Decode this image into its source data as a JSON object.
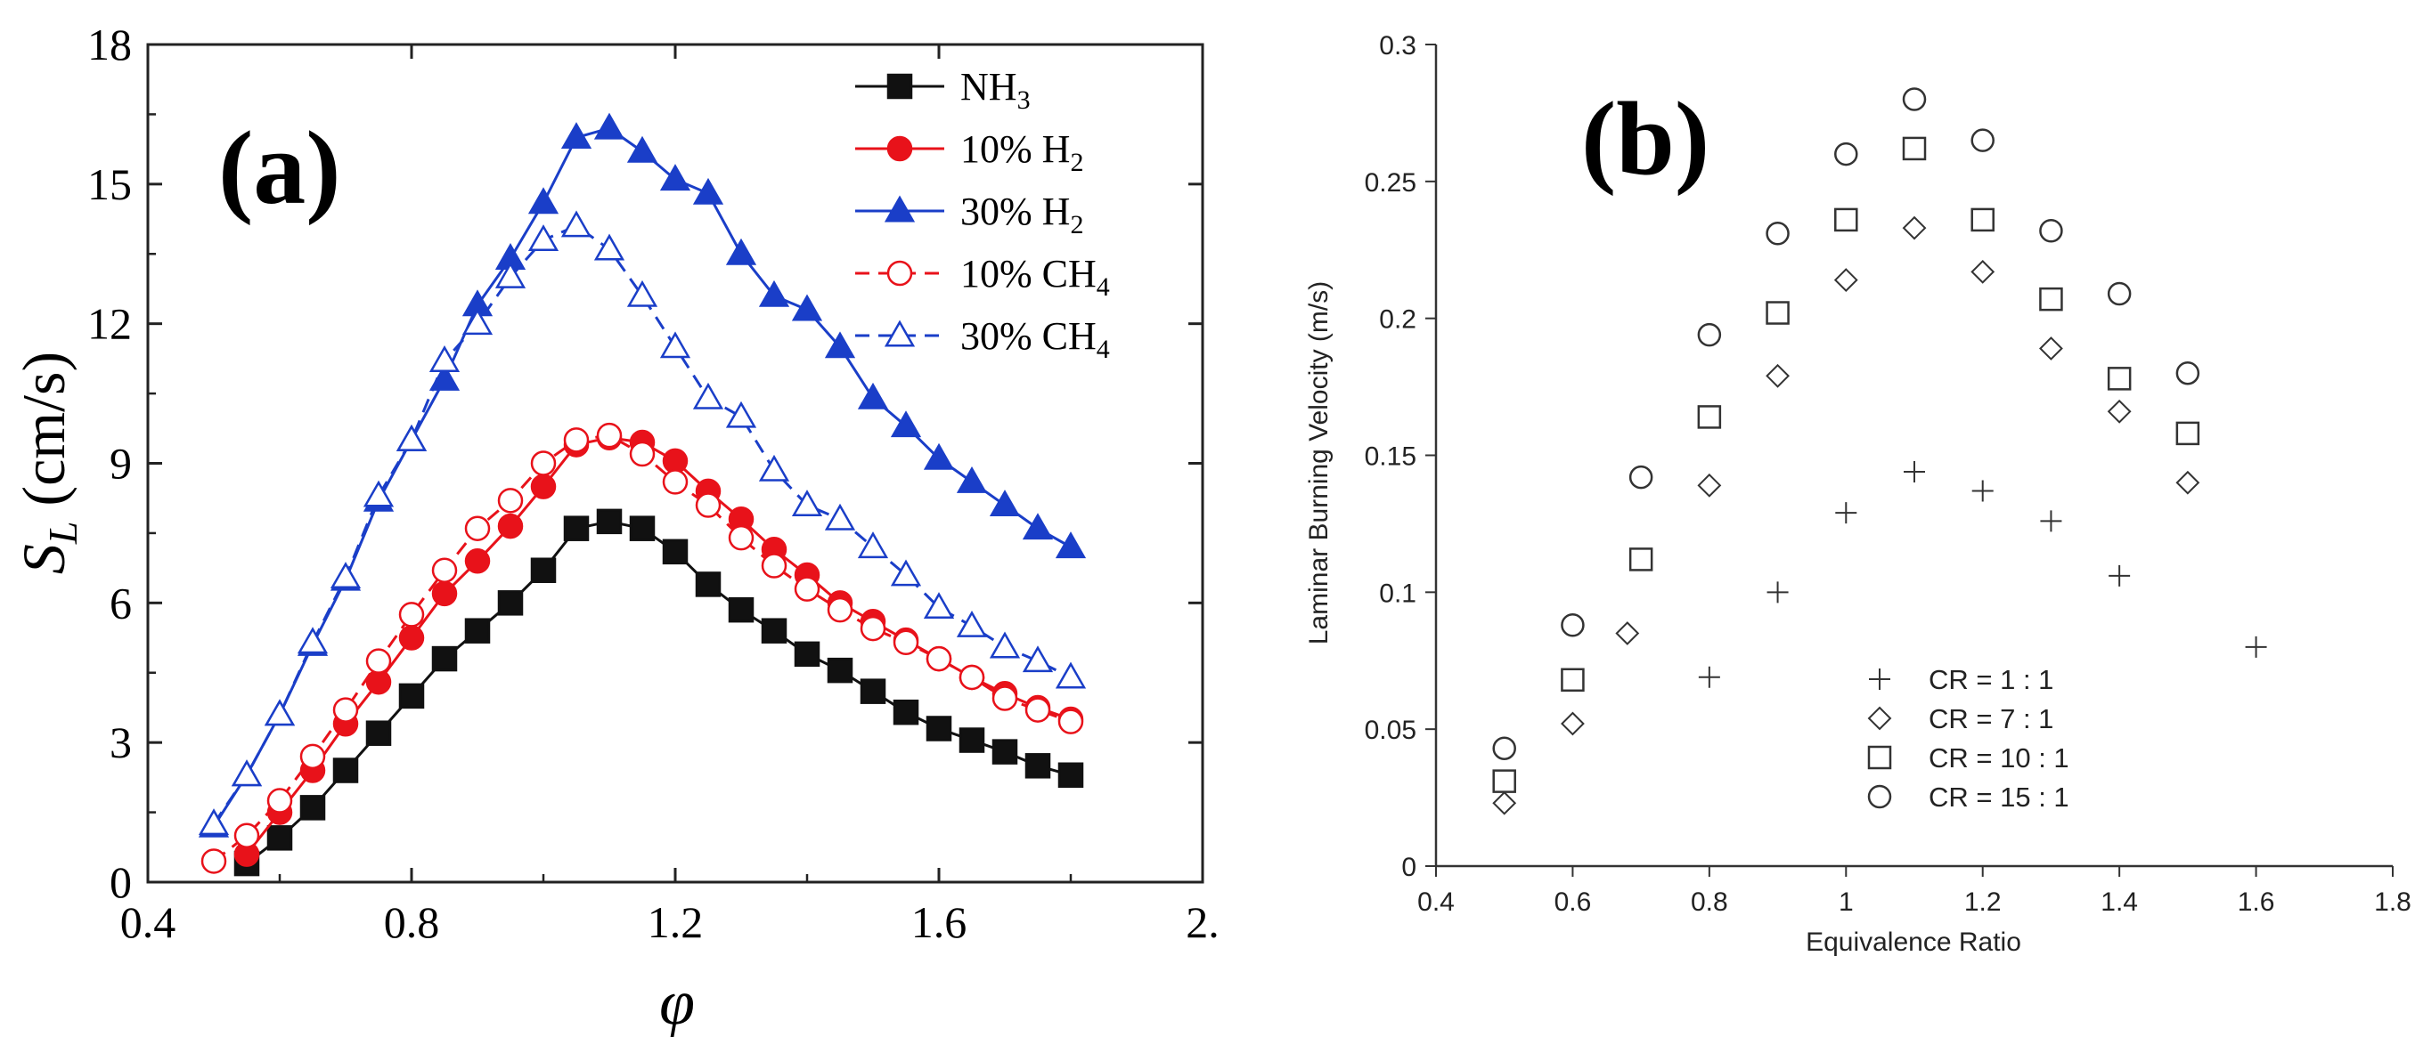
{
  "chart_data": [
    {
      "type": "line",
      "panel_label": "(a)",
      "xlabel": "φ",
      "ylabel_main": "S",
      "ylabel_sub": "L",
      "ylabel_unit": " (cm/s)",
      "xlim": [
        0.4,
        2.0
      ],
      "ylim": [
        0,
        18
      ],
      "xticks": [
        0.4,
        0.8,
        1.2,
        1.6,
        2.0
      ],
      "xtick_labels": [
        "0.4",
        "0.8",
        "1.2",
        "1.6",
        "2."
      ],
      "yticks": [
        0,
        3,
        6,
        9,
        12,
        15,
        18
      ],
      "ytick_labels": [
        "0",
        "3",
        "6",
        "9",
        "12",
        "15",
        "18"
      ],
      "grid": false,
      "legend_position": "top-right",
      "series": [
        {
          "name": "NH3",
          "label_main": "NH",
          "label_sub": "3",
          "color": "#111111",
          "marker": "square",
          "filled": true,
          "dashed": false,
          "x": [
            0.55,
            0.6,
            0.65,
            0.7,
            0.75,
            0.8,
            0.85,
            0.9,
            0.95,
            1.0,
            1.05,
            1.1,
            1.15,
            1.2,
            1.25,
            1.3,
            1.35,
            1.4,
            1.45,
            1.5,
            1.55,
            1.6,
            1.65,
            1.7,
            1.75,
            1.8
          ],
          "y": [
            0.4,
            0.95,
            1.6,
            2.4,
            3.2,
            4.0,
            4.8,
            5.4,
            6.0,
            6.7,
            7.6,
            7.75,
            7.6,
            7.1,
            6.4,
            5.85,
            5.4,
            4.9,
            4.55,
            4.1,
            3.65,
            3.3,
            3.05,
            2.8,
            2.5,
            2.3
          ]
        },
        {
          "name": "10% H2",
          "label_main": "10% H",
          "label_sub": "2",
          "color": "#e8121a",
          "marker": "circle",
          "filled": true,
          "dashed": false,
          "x": [
            0.55,
            0.6,
            0.65,
            0.7,
            0.75,
            0.8,
            0.85,
            0.9,
            0.95,
            1.0,
            1.05,
            1.1,
            1.15,
            1.2,
            1.25,
            1.3,
            1.35,
            1.4,
            1.45,
            1.5,
            1.55,
            1.6,
            1.65,
            1.7,
            1.75,
            1.8
          ],
          "y": [
            0.6,
            1.5,
            2.4,
            3.4,
            4.3,
            5.25,
            6.2,
            6.9,
            7.65,
            8.5,
            9.4,
            9.55,
            9.45,
            9.05,
            8.4,
            7.8,
            7.15,
            6.6,
            6.0,
            5.6,
            5.2,
            4.8,
            4.4,
            4.05,
            3.75,
            3.5
          ]
        },
        {
          "name": "30% H2",
          "label_main": "30% H",
          "label_sub": "2",
          "color": "#1a3ec8",
          "marker": "triangle",
          "filled": true,
          "dashed": false,
          "x": [
            0.5,
            0.55,
            0.6,
            0.65,
            0.7,
            0.75,
            0.8,
            0.85,
            0.9,
            0.95,
            1.0,
            1.05,
            1.1,
            1.15,
            1.2,
            1.25,
            1.3,
            1.35,
            1.4,
            1.45,
            1.5,
            1.55,
            1.6,
            1.65,
            1.7,
            1.75,
            1.8
          ],
          "y": [
            1.2,
            2.3,
            3.6,
            5.1,
            6.5,
            8.2,
            9.5,
            10.8,
            12.4,
            13.4,
            14.6,
            16.0,
            16.2,
            15.7,
            15.1,
            14.8,
            13.5,
            12.6,
            12.3,
            11.5,
            10.4,
            9.8,
            9.1,
            8.6,
            8.1,
            7.6,
            7.2
          ]
        },
        {
          "name": "10% CH4",
          "label_main": "10% CH",
          "label_sub": "4",
          "color": "#e8121a",
          "marker": "circle",
          "filled": false,
          "dashed": true,
          "x": [
            0.5,
            0.55,
            0.6,
            0.65,
            0.7,
            0.75,
            0.8,
            0.85,
            0.9,
            0.95,
            1.0,
            1.05,
            1.1,
            1.15,
            1.2,
            1.25,
            1.3,
            1.35,
            1.4,
            1.45,
            1.5,
            1.55,
            1.6,
            1.65,
            1.7,
            1.75,
            1.8
          ],
          "y": [
            0.45,
            1.0,
            1.75,
            2.7,
            3.7,
            4.75,
            5.75,
            6.7,
            7.6,
            8.2,
            9.0,
            9.5,
            9.6,
            9.2,
            8.6,
            8.1,
            7.4,
            6.8,
            6.3,
            5.85,
            5.45,
            5.15,
            4.8,
            4.4,
            3.95,
            3.7,
            3.45
          ]
        },
        {
          "name": "30% CH4",
          "label_main": "30% CH",
          "label_sub": "4",
          "color": "#1a3ec8",
          "marker": "triangle",
          "filled": false,
          "dashed": true,
          "x": [
            0.5,
            0.55,
            0.6,
            0.65,
            0.7,
            0.75,
            0.8,
            0.85,
            0.9,
            0.95,
            1.0,
            1.05,
            1.1,
            1.15,
            1.2,
            1.25,
            1.3,
            1.35,
            1.4,
            1.45,
            1.5,
            1.55,
            1.6,
            1.65,
            1.7,
            1.75,
            1.8
          ],
          "y": [
            1.25,
            2.3,
            3.6,
            5.15,
            6.55,
            8.3,
            9.5,
            11.2,
            12.0,
            13.0,
            13.8,
            14.1,
            13.6,
            12.6,
            11.5,
            10.4,
            10.0,
            8.85,
            8.1,
            7.8,
            7.2,
            6.6,
            5.9,
            5.5,
            5.05,
            4.75,
            4.4
          ]
        }
      ]
    },
    {
      "type": "scatter",
      "panel_label": "(b)",
      "xlabel": "Equivalence Ratio",
      "ylabel": "Laminar Burning Velocity (m/s)",
      "xlim": [
        0.4,
        1.8
      ],
      "ylim": [
        0,
        0.3
      ],
      "xticks": [
        0.4,
        0.6,
        0.8,
        1.0,
        1.2,
        1.4,
        1.6,
        1.8
      ],
      "xtick_labels": [
        "0.4",
        "0.6",
        "0.8",
        "1",
        "1.2",
        "1.4",
        "1.6",
        "1.8"
      ],
      "yticks": [
        0,
        0.05,
        0.1,
        0.15,
        0.2,
        0.25,
        0.3
      ],
      "ytick_labels": [
        "0",
        "0.05",
        "0.1",
        "0.15",
        "0.2",
        "0.25",
        "0.3"
      ],
      "grid": false,
      "legend_position": "bottom-right",
      "series": [
        {
          "name": "CR = 1 : 1",
          "marker": "plus",
          "color": "#333333",
          "x": [
            0.8,
            0.9,
            1.0,
            1.1,
            1.2,
            1.3,
            1.4,
            1.6
          ],
          "y": [
            0.069,
            0.1,
            0.129,
            0.144,
            0.137,
            0.126,
            0.106,
            0.08
          ]
        },
        {
          "name": "CR = 7 : 1",
          "marker": "diamond",
          "color": "#333333",
          "x": [
            0.5,
            0.6,
            0.68,
            0.8,
            0.9,
            1.0,
            1.1,
            1.2,
            1.3,
            1.4,
            1.5
          ],
          "y": [
            0.023,
            0.052,
            0.085,
            0.139,
            0.179,
            0.214,
            0.233,
            0.217,
            0.189,
            0.166,
            0.14
          ]
        },
        {
          "name": "CR = 10 : 1",
          "marker": "square",
          "color": "#333333",
          "x": [
            0.5,
            0.6,
            0.7,
            0.8,
            0.9,
            1.0,
            1.1,
            1.2,
            1.3,
            1.4,
            1.5
          ],
          "y": [
            0.031,
            0.068,
            0.112,
            0.164,
            0.202,
            0.236,
            0.262,
            0.236,
            0.207,
            0.178,
            0.158
          ]
        },
        {
          "name": "CR = 15 : 1",
          "marker": "circle",
          "color": "#333333",
          "x": [
            0.5,
            0.6,
            0.7,
            0.8,
            0.9,
            1.0,
            1.1,
            1.2,
            1.3,
            1.4,
            1.5
          ],
          "y": [
            0.043,
            0.088,
            0.142,
            0.194,
            0.231,
            0.26,
            0.28,
            0.265,
            0.232,
            0.209,
            0.18
          ]
        }
      ]
    }
  ]
}
